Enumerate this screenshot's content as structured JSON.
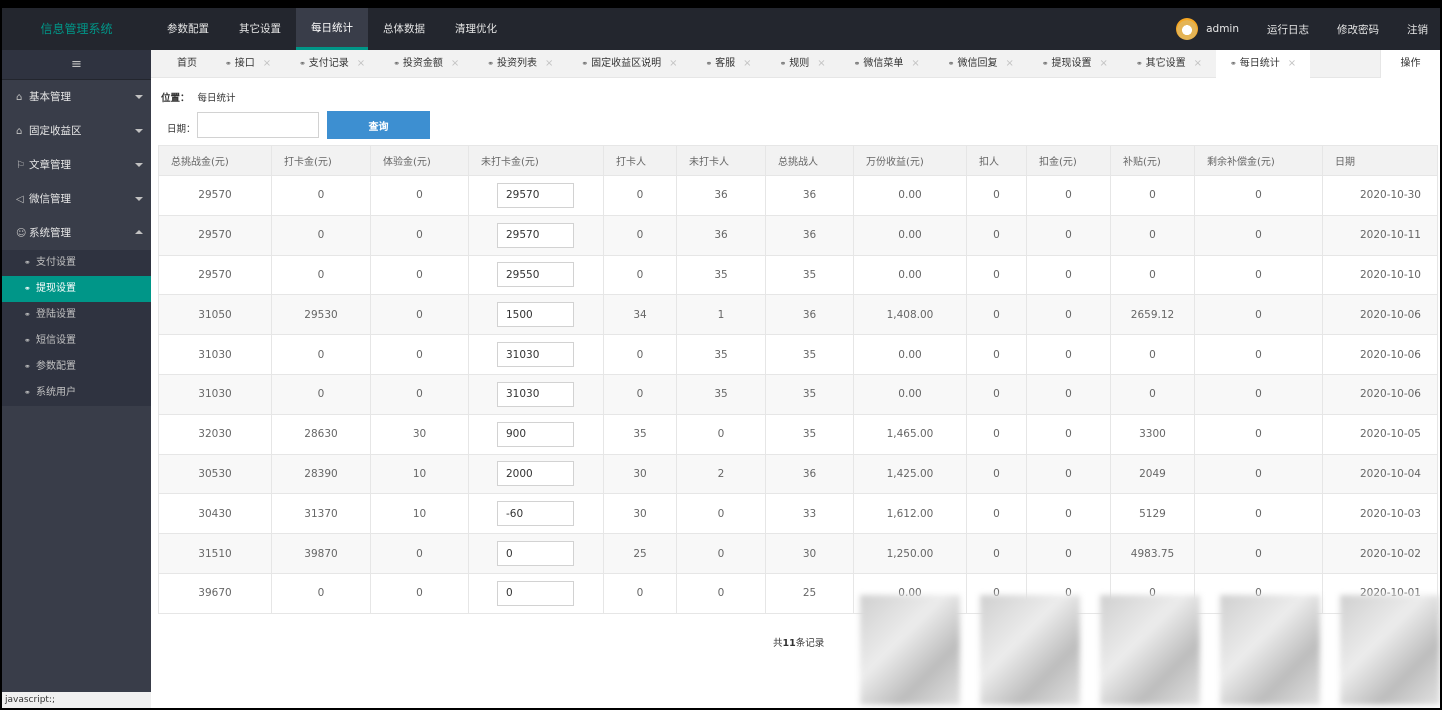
{
  "app": {
    "title": "信息管理系统"
  },
  "topnav": [
    {
      "label": "参数配置",
      "active": false
    },
    {
      "label": "其它设置",
      "active": false
    },
    {
      "label": "每日统计",
      "active": true
    },
    {
      "label": "总体数据",
      "active": false
    },
    {
      "label": "清理优化",
      "active": false
    }
  ],
  "user": {
    "name": "admin",
    "links": [
      "运行日志",
      "修改密码",
      "注销"
    ]
  },
  "sidebar": {
    "toggle_icon": "≡",
    "groups": [
      {
        "icon": "home-icon",
        "glyph": "⌂",
        "label": "基本管理",
        "expanded": false
      },
      {
        "icon": "lock-icon",
        "glyph": "⌂",
        "label": "固定收益区",
        "expanded": false
      },
      {
        "icon": "flag-icon",
        "glyph": "⚐",
        "label": "文章管理",
        "expanded": false
      },
      {
        "icon": "send-icon",
        "glyph": "◁",
        "label": "微信管理",
        "expanded": false
      },
      {
        "icon": "user-icon",
        "glyph": "☺",
        "label": "系统管理",
        "expanded": true
      }
    ],
    "sub_items": [
      {
        "label": "支付设置",
        "active": false
      },
      {
        "label": "提现设置",
        "active": true
      },
      {
        "label": "登陆设置",
        "active": false
      },
      {
        "label": "短信设置",
        "active": false
      },
      {
        "label": "参数配置",
        "active": false
      },
      {
        "label": "系统用户",
        "active": false
      }
    ]
  },
  "status_text": "javascript:;",
  "tabs": {
    "home": "首页",
    "items": [
      {
        "label": "接口",
        "active": false
      },
      {
        "label": "支付记录",
        "active": false
      },
      {
        "label": "投资金额",
        "active": false
      },
      {
        "label": "投资列表",
        "active": false
      },
      {
        "label": "固定收益区说明",
        "active": false
      },
      {
        "label": "客服",
        "active": false
      },
      {
        "label": "规则",
        "active": false
      },
      {
        "label": "微信菜单",
        "active": false
      },
      {
        "label": "微信回复",
        "active": false
      },
      {
        "label": "提现设置",
        "active": false
      },
      {
        "label": "其它设置",
        "active": false
      },
      {
        "label": "每日统计",
        "active": true
      }
    ],
    "ops": "操作"
  },
  "breadcrumb": {
    "label": "位置：",
    "current": "每日统计"
  },
  "search": {
    "label": "日期：",
    "value": "",
    "button": "查询"
  },
  "table": {
    "headers": [
      "总挑战金(元)",
      "打卡金(元)",
      "体验金(元)",
      "未打卡金(元)",
      "打卡人",
      "未打卡人",
      "总挑战人",
      "万份收益(元)",
      "扣人",
      "扣金(元)",
      "补贴(元)",
      "剩余补偿金(元)",
      "日期"
    ],
    "rows": [
      [
        "29570",
        "0",
        "0",
        "29570",
        "0",
        "36",
        "36",
        "0.00",
        "0",
        "0",
        "0",
        "0",
        "2020-10-30"
      ],
      [
        "29570",
        "0",
        "0",
        "29570",
        "0",
        "36",
        "36",
        "0.00",
        "0",
        "0",
        "0",
        "0",
        "2020-10-11"
      ],
      [
        "29570",
        "0",
        "0",
        "29550",
        "0",
        "35",
        "35",
        "0.00",
        "0",
        "0",
        "0",
        "0",
        "2020-10-10"
      ],
      [
        "31050",
        "29530",
        "0",
        "1500",
        "34",
        "1",
        "36",
        "1,408.00",
        "0",
        "0",
        "2659.12",
        "0",
        "2020-10-06"
      ],
      [
        "31030",
        "0",
        "0",
        "31030",
        "0",
        "35",
        "35",
        "0.00",
        "0",
        "0",
        "0",
        "0",
        "2020-10-06"
      ],
      [
        "31030",
        "0",
        "0",
        "31030",
        "0",
        "35",
        "35",
        "0.00",
        "0",
        "0",
        "0",
        "0",
        "2020-10-06"
      ],
      [
        "32030",
        "28630",
        "30",
        "900",
        "35",
        "0",
        "35",
        "1,465.00",
        "0",
        "0",
        "3300",
        "0",
        "2020-10-05"
      ],
      [
        "30530",
        "28390",
        "10",
        "2000",
        "30",
        "2",
        "36",
        "1,425.00",
        "0",
        "0",
        "2049",
        "0",
        "2020-10-04"
      ],
      [
        "30430",
        "31370",
        "10",
        "-60",
        "30",
        "0",
        "33",
        "1,612.00",
        "0",
        "0",
        "5129",
        "0",
        "2020-10-03"
      ],
      [
        "31510",
        "39870",
        "0",
        "0",
        "25",
        "0",
        "30",
        "1,250.00",
        "0",
        "0",
        "4983.75",
        "0",
        "2020-10-02"
      ],
      [
        "39670",
        "0",
        "0",
        "0",
        "0",
        "0",
        "25",
        "0.00",
        "0",
        "0",
        "0",
        "0",
        "2020-10-01"
      ]
    ]
  },
  "footer": {
    "prefix": "共",
    "count": "11",
    "suffix": "条记录"
  },
  "colors": {
    "accent": "#009688",
    "topbar": "#23262e",
    "sidebar": "#393d49",
    "button": "#3d8fd1"
  }
}
